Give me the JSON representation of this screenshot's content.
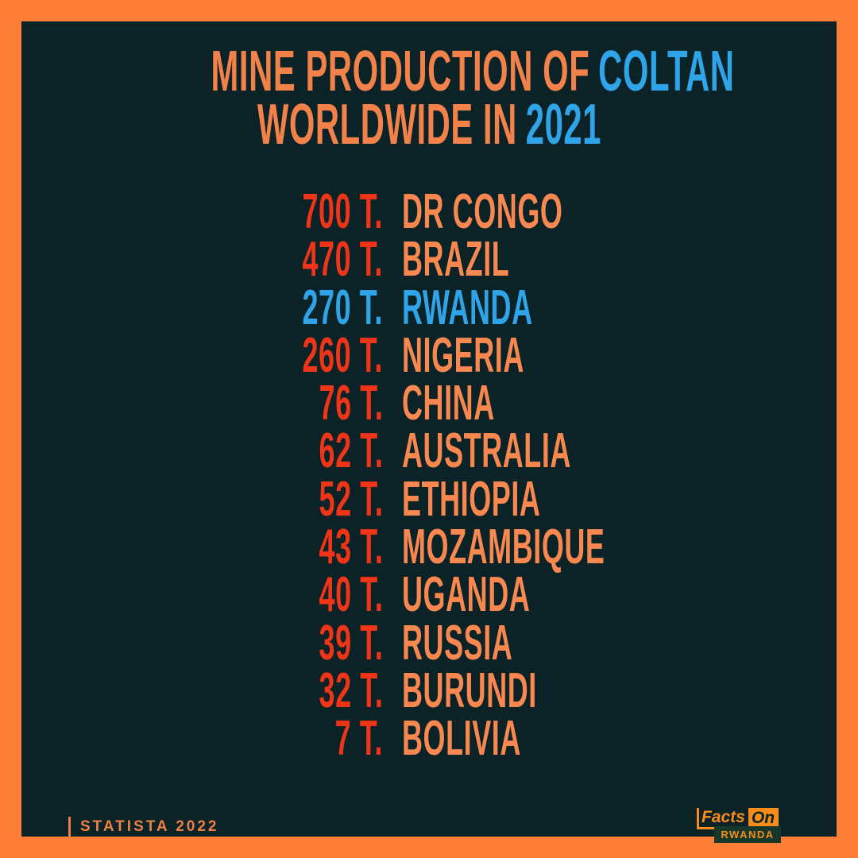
{
  "colors": {
    "border_orange": "#FC7E37",
    "background": "#0B2326",
    "title_orange": "#F3814A",
    "country_orange": "#F8884F",
    "value_red": "#EF3418",
    "accent_blue": "#2FA4E9",
    "source_orange": "#ED8145",
    "logo_orange": "#F68C1C",
    "logo_green": "#16382B"
  },
  "title": {
    "line1_main": "MINE PRODUCTION OF",
    "line1_accent": "COLTAN",
    "line2_main": "WORLDWIDE IN",
    "line2_accent": "2021"
  },
  "list": {
    "unit": "T.",
    "items": [
      {
        "value": "700",
        "country": "DR CONGO",
        "highlight": false
      },
      {
        "value": "470",
        "country": "BRAZIL",
        "highlight": false
      },
      {
        "value": "270",
        "country": "RWANDA",
        "highlight": true
      },
      {
        "value": "260",
        "country": "NIGERIA",
        "highlight": false
      },
      {
        "value": "76",
        "country": "CHINA",
        "highlight": false
      },
      {
        "value": "62",
        "country": "AUSTRALIA",
        "highlight": false
      },
      {
        "value": "52",
        "country": "ETHIOPIA",
        "highlight": false
      },
      {
        "value": "43",
        "country": "MOZAMBIQUE",
        "highlight": false
      },
      {
        "value": "40",
        "country": "UGANDA",
        "highlight": false
      },
      {
        "value": "39",
        "country": "RUSSIA",
        "highlight": false
      },
      {
        "value": "32",
        "country": "BURUNDI",
        "highlight": false
      },
      {
        "value": "7",
        "country": "BOLIVIA",
        "highlight": false
      }
    ]
  },
  "footer": {
    "source": "STATISTA 2022",
    "logo": {
      "facts": "Facts",
      "on": "On",
      "country": "RWANDA"
    }
  },
  "chart_data": {
    "type": "table",
    "title": "MINE PRODUCTION OF COLTAN WORLDWIDE IN 2021",
    "unit": "metric tons (T.)",
    "categories": [
      "DR CONGO",
      "BRAZIL",
      "RWANDA",
      "NIGERIA",
      "CHINA",
      "AUSTRALIA",
      "ETHIOPIA",
      "MOZAMBIQUE",
      "UGANDA",
      "RUSSIA",
      "BURUNDI",
      "BOLIVIA"
    ],
    "values": [
      700,
      470,
      270,
      260,
      76,
      62,
      52,
      43,
      40,
      39,
      32,
      7
    ],
    "highlighted_category": "RWANDA",
    "source": "STATISTA 2022"
  }
}
